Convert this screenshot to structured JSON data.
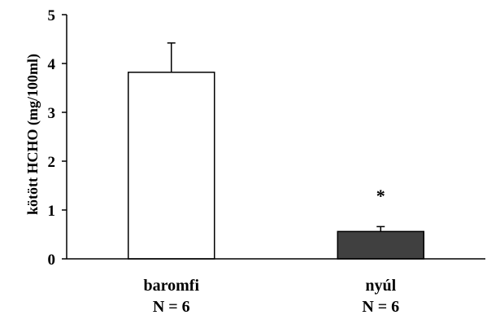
{
  "chart_data": {
    "type": "bar",
    "title": "",
    "xlabel": "",
    "ylabel": "kötött HCHO  (mg/100ml)",
    "ylim": [
      0,
      5
    ],
    "yticks": [
      0,
      1,
      2,
      3,
      4,
      5
    ],
    "grid": false,
    "legend": "none",
    "categories": [
      "baromfi",
      "nyúl"
    ],
    "category_sublabels": [
      "N = 6",
      "N = 6"
    ],
    "values": [
      3.82,
      0.56
    ],
    "error_plus": [
      0.6,
      0.1
    ],
    "bar_colors": [
      "#ffffff",
      "#404040"
    ],
    "edge_color": "#000000",
    "annotations": [
      {
        "category": "nyúl",
        "text": "*",
        "y": 1.4
      }
    ]
  }
}
